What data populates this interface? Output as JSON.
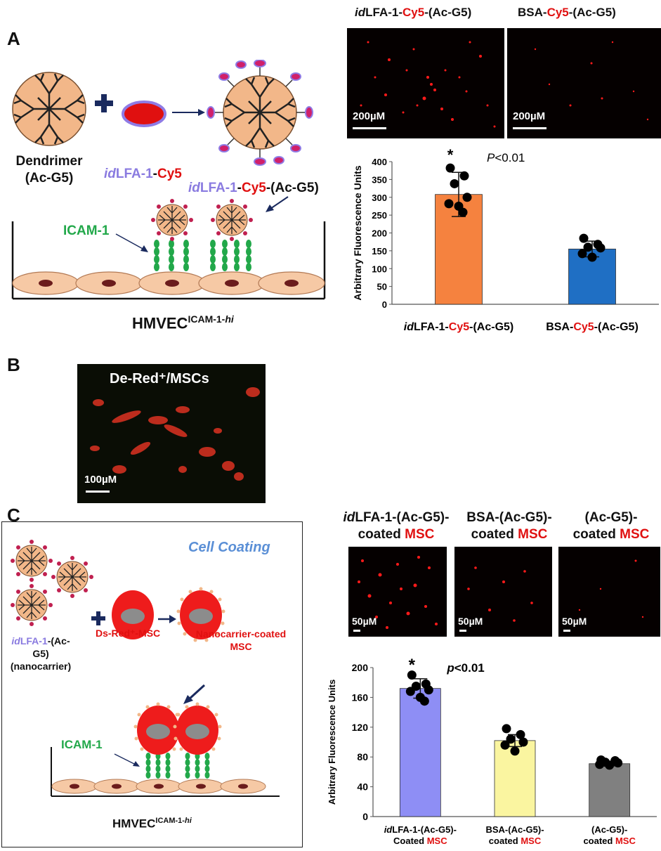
{
  "panel_labels": {
    "a": "A",
    "b": "B",
    "c": "C"
  },
  "panelA": {
    "dendrimer_label_1": "Dendrimer",
    "dendrimer_label_2": "(Ac-G5)",
    "ligand_id": "id",
    "ligand_lfa": "LFA-1",
    "ligand_dash": "-",
    "ligand_cy5": "Cy5",
    "conj_suffix": "-(Ac-G5)",
    "icam": "ICAM-1",
    "hmvec": "HMVEC",
    "hmvec_sup_main": "ICAM-1-",
    "hmvec_sup_it": "hi",
    "img1_title_id": "id",
    "img1_title_a": "LFA-1-",
    "img1_title_cy5": "Cy5",
    "img1_title_b": "-(Ac-G5)",
    "img2_title_a": "BSA-",
    "img2_title_cy5": "Cy5",
    "img2_title_b": "-(Ac-G5)",
    "scale_label": "200µM"
  },
  "panelB": {
    "title": "De-Red⁺/MSCs",
    "scale_label": "100µM"
  },
  "panelC": {
    "cell_coating": "Cell Coating",
    "nano_id": "id",
    "nano_lfa": "LFA-1",
    "nano_suffix": "-(Ac-G5)",
    "nano_note": "(nanocarrier)",
    "dsred": "Ds-Red⁺-MSC",
    "coated_1": "Nanocarrier-coated",
    "coated_2": "MSC",
    "icam": "ICAM-1",
    "hmvec": "HMVEC",
    "hmvec_sup_main": "ICAM-1-",
    "hmvec_sup_it": "hi",
    "img_titles": [
      {
        "l1_id": "id",
        "l1": "LFA-1-(Ac-G5)-",
        "l2": "coated ",
        "l2_red": "MSC"
      },
      {
        "l1_id": "",
        "l1": "BSA-(Ac-G5)-",
        "l2": "coated ",
        "l2_red": "MSC"
      },
      {
        "l1_id": "",
        "l1": "(Ac-G5)-",
        "l2": "coated ",
        "l2_red": "MSC"
      }
    ],
    "scale_label": "50µM"
  },
  "chart_data": [
    {
      "type": "bar",
      "ylabel": "Arbitrary Fluorescence Units",
      "ylim": [
        0,
        400
      ],
      "yticks": [
        0,
        50,
        100,
        150,
        200,
        250,
        300,
        350,
        400
      ],
      "categories": [
        {
          "parts": [
            {
              "t": "id",
              "s": "it"
            },
            {
              "t": "LFA-1-"
            },
            {
              "t": "Cy5",
              "s": "red"
            },
            {
              "t": "-(Ac-G5)"
            }
          ]
        },
        {
          "parts": [
            {
              "t": "BSA-"
            },
            {
              "t": "Cy5",
              "s": "red"
            },
            {
              "t": "-(Ac-G5)"
            }
          ]
        }
      ],
      "values": [
        308,
        155
      ],
      "errors": [
        62,
        22
      ],
      "colors": [
        "#f5823f",
        "#1f6fc4"
      ],
      "points": [
        [
          382,
          360,
          338,
          300,
          282,
          275,
          258
        ],
        [
          185,
          168,
          160,
          158,
          142,
          132
        ]
      ],
      "annotation_star": "*",
      "annotation_p": "P",
      "annotation_rest": "<0.01"
    },
    {
      "type": "bar",
      "ylabel": "Arbitrary Fluorescence Units",
      "ylim": [
        0,
        200
      ],
      "yticks": [
        0,
        40,
        80,
        120,
        160,
        200
      ],
      "categories": [
        {
          "line1": [
            {
              "t": "id",
              "s": "it"
            },
            {
              "t": "LFA-1-(Ac-G5)-"
            }
          ],
          "line2": [
            {
              "t": "Coated "
            },
            {
              "t": "MSC",
              "s": "red"
            }
          ]
        },
        {
          "line1": [
            {
              "t": "BSA-(Ac-G5)-"
            }
          ],
          "line2": [
            {
              "t": "coated "
            },
            {
              "t": "MSC",
              "s": "red"
            }
          ]
        },
        {
          "line1": [
            {
              "t": "(Ac-G5)-"
            }
          ],
          "line2": [
            {
              "t": "coated "
            },
            {
              "t": "MSC",
              "s": "red"
            }
          ]
        }
      ],
      "values": [
        172,
        102,
        71
      ],
      "errors": [
        13,
        8,
        3
      ],
      "colors": [
        "#8e8ef5",
        "#faf5a0",
        "#808080"
      ],
      "points": [
        [
          190,
          178,
          175,
          170,
          168,
          160,
          155
        ],
        [
          118,
          110,
          104,
          100,
          96,
          88
        ],
        [
          76,
          75,
          73,
          72,
          70,
          69
        ]
      ],
      "annotation_star": "*",
      "annotation_p": "p",
      "annotation_rest": "<0.01"
    }
  ]
}
